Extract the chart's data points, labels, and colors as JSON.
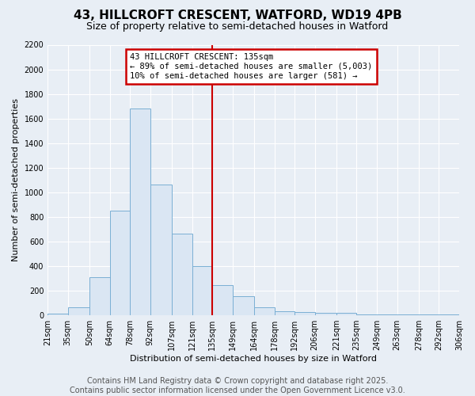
{
  "title": "43, HILLCROFT CRESCENT, WATFORD, WD19 4PB",
  "subtitle": "Size of property relative to semi-detached houses in Watford",
  "xlabel": "Distribution of semi-detached houses by size in Watford",
  "ylabel": "Number of semi-detached properties",
  "annotation_line1": "43 HILLCROFT CRESCENT: 135sqm",
  "annotation_line2": "← 89% of semi-detached houses are smaller (5,003)",
  "annotation_line3": "10% of semi-detached houses are larger (581) →",
  "property_size": 135,
  "bar_color": "#dae6f3",
  "bar_edge_color": "#7aafd4",
  "vline_color": "#cc0000",
  "annotation_box_edge": "#cc0000",
  "background_color": "#e8eef5",
  "grid_color": "#ffffff",
  "bins": [
    21,
    35,
    50,
    64,
    78,
    92,
    107,
    121,
    135,
    149,
    164,
    178,
    192,
    206,
    221,
    235,
    249,
    263,
    278,
    292,
    306
  ],
  "bin_labels": [
    "21sqm",
    "35sqm",
    "50sqm",
    "64sqm",
    "78sqm",
    "92sqm",
    "107sqm",
    "121sqm",
    "135sqm",
    "149sqm",
    "164sqm",
    "178sqm",
    "192sqm",
    "206sqm",
    "221sqm",
    "235sqm",
    "249sqm",
    "263sqm",
    "278sqm",
    "292sqm",
    "306sqm"
  ],
  "counts": [
    10,
    60,
    305,
    850,
    1680,
    1060,
    660,
    400,
    240,
    150,
    65,
    30,
    25,
    20,
    15,
    5,
    3,
    3,
    3,
    3
  ],
  "ylim": [
    0,
    2200
  ],
  "yticks": [
    0,
    200,
    400,
    600,
    800,
    1000,
    1200,
    1400,
    1600,
    1800,
    2000,
    2200
  ],
  "footer_line1": "Contains HM Land Registry data © Crown copyright and database right 2025.",
  "footer_line2": "Contains public sector information licensed under the Open Government Licence v3.0.",
  "title_fontsize": 11,
  "subtitle_fontsize": 9,
  "axis_fontsize": 8,
  "tick_fontsize": 7,
  "footer_fontsize": 7,
  "annotation_fontsize": 7.5
}
